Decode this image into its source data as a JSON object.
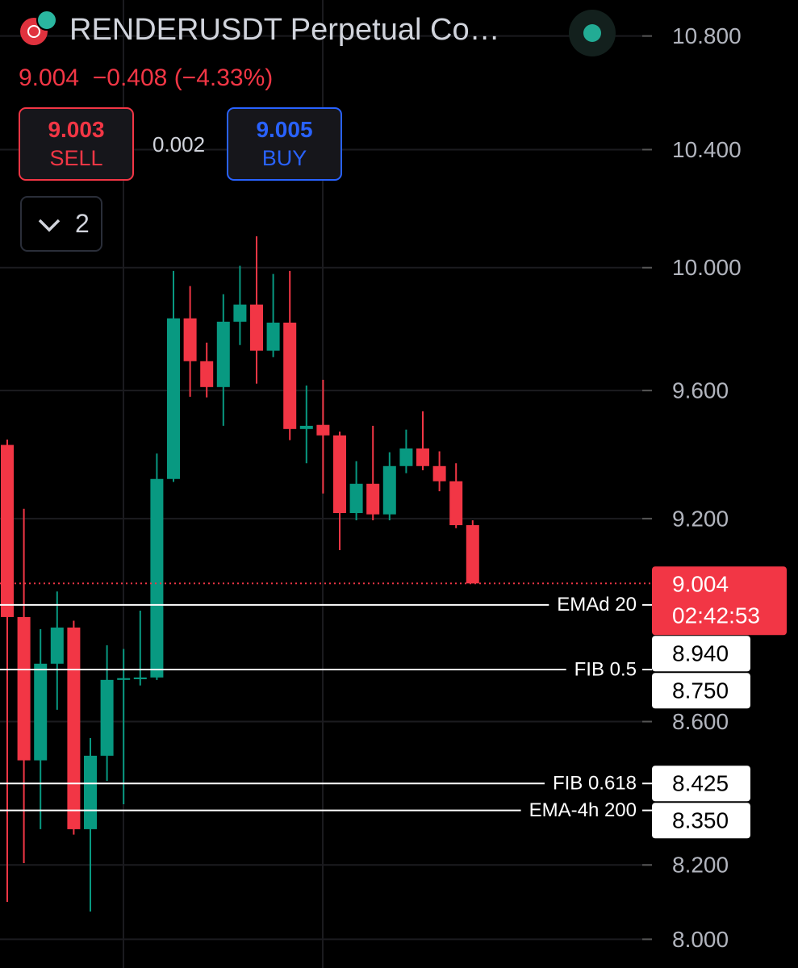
{
  "header": {
    "symbol": "RENDERUSDT Perpetual Co…",
    "price": "9.004",
    "change": "−0.408",
    "change_percent": "(−4.33%)",
    "sell_price": "9.003",
    "sell_label": "SELL",
    "spread": "0.002",
    "buy_price": "9.005",
    "buy_label": "BUY",
    "indicator_count": "2"
  },
  "chart_data": {
    "type": "candlestick",
    "log_scale": true,
    "grid": true,
    "up_color": "#089981",
    "down_color": "#f23645",
    "open": [
      9.428,
      8.904,
      8.49,
      8.767,
      8.873,
      8.298,
      8.503,
      8.72,
      8.722,
      8.727,
      9.322,
      9.833,
      9.694,
      9.611,
      9.822,
      9.878,
      9.728,
      9.819,
      9.478,
      9.491,
      9.458,
      9.217,
      9.307,
      9.213,
      9.362,
      9.417,
      9.362,
      9.315,
      9.18
    ],
    "high": [
      9.445,
      9.23,
      8.868,
      8.98,
      8.893,
      8.553,
      8.821,
      8.81,
      8.923,
      9.401,
      9.989,
      9.939,
      9.754,
      9.912,
      10.006,
      10.105,
      9.979,
      9.989,
      9.616,
      9.634,
      9.47,
      9.377,
      9.488,
      9.405,
      9.476,
      9.534,
      9.408,
      9.371,
      9.195
    ],
    "low": [
      8.1,
      8.205,
      8.298,
      8.634,
      8.283,
      8.074,
      8.432,
      8.367,
      8.704,
      8.72,
      9.313,
      9.58,
      9.578,
      9.488,
      9.746,
      9.622,
      9.707,
      9.443,
      9.371,
      9.277,
      9.104,
      9.195,
      9.195,
      9.195,
      9.34,
      9.349,
      9.284,
      9.171,
      9.004
    ],
    "close": [
      8.904,
      8.49,
      8.767,
      8.873,
      8.298,
      8.503,
      8.72,
      8.725,
      8.727,
      9.322,
      9.833,
      9.694,
      9.611,
      9.822,
      9.878,
      9.728,
      9.819,
      9.478,
      9.488,
      9.458,
      9.217,
      9.307,
      9.213,
      9.362,
      9.417,
      9.362,
      9.315,
      9.18,
      9.004
    ],
    "ylim": [
      7.924,
      10.93
    ],
    "yticks": [
      {
        "value": 10.8,
        "label": "10.800"
      },
      {
        "value": 10.4,
        "label": "10.400"
      },
      {
        "value": 10.0,
        "label": "10.000"
      },
      {
        "value": 9.6,
        "label": "9.600"
      },
      {
        "value": 9.2,
        "label": "9.200"
      },
      {
        "value": 8.6,
        "label": "8.600"
      },
      {
        "value": 8.2,
        "label": "8.200"
      },
      {
        "value": 8.0,
        "label": "8.000"
      }
    ],
    "last_price": 9.004,
    "countdown": "02:42:53",
    "levels": [
      {
        "name": "EMAd 20",
        "value": 8.94,
        "label": "8.940"
      },
      {
        "name": "FIB 0.5",
        "value": 8.75,
        "label": "8.750"
      },
      {
        "name": "FIB 0.618",
        "value": 8.425,
        "label": "8.425"
      },
      {
        "name": "EMA-4h 200",
        "value": 8.35,
        "label": "8.350"
      }
    ]
  }
}
